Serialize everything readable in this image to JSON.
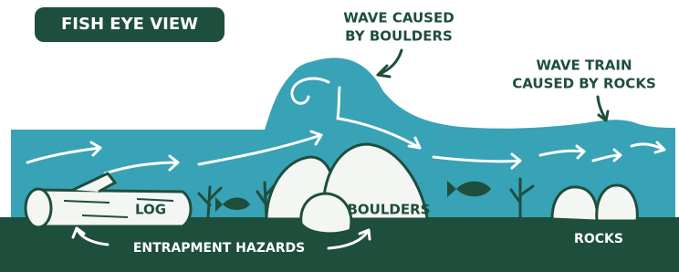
{
  "title": "FISH EYE VIEW",
  "labels": {
    "wave_boulders": [
      "WAVE CAUSED",
      "BY BOULDERS"
    ],
    "wave_train": [
      "WAVE TRAIN",
      "CAUSED BY ROCKS"
    ],
    "log": "LOG",
    "boulders": "BOULDERS",
    "rocks": "ROCKS",
    "hazards": "ENTRAPMENT HAZARDS"
  }
}
